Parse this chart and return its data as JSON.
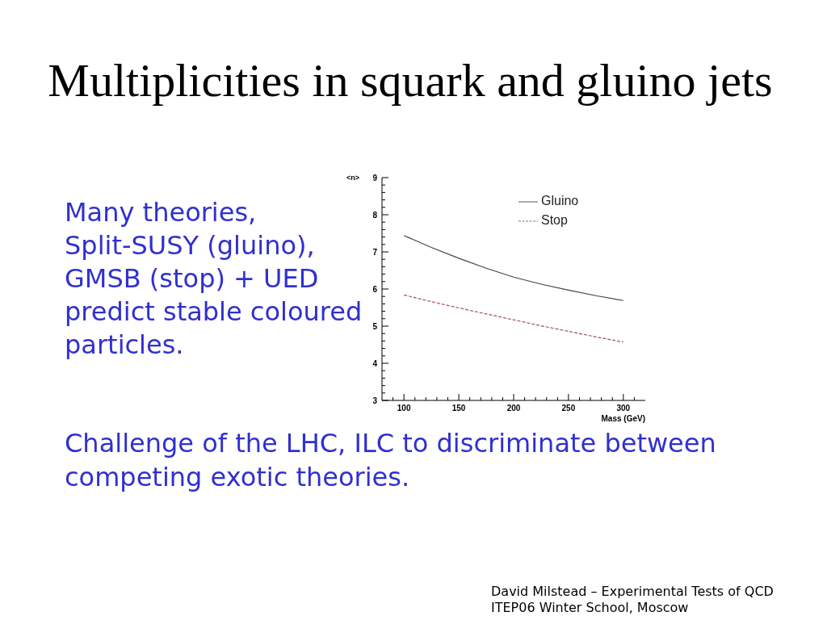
{
  "chart_data": {
    "type": "line",
    "title": "Multiplicities in squark and gluino jets",
    "xlabel": "Mass (GeV)",
    "ylabel": "<n>",
    "x": [
      100,
      125,
      150,
      175,
      200,
      225,
      250,
      275,
      300
    ],
    "series": [
      {
        "name": "Gluino",
        "color": "#444444",
        "line_style": "solid",
        "values": [
          7.44,
          7.12,
          6.83,
          6.56,
          6.32,
          6.13,
          5.97,
          5.82,
          5.69
        ]
      },
      {
        "name": "Stop",
        "color": "#a0525a",
        "line_style": "dashed",
        "values": [
          5.84,
          5.66,
          5.49,
          5.33,
          5.17,
          5.01,
          4.86,
          4.71,
          4.57
        ]
      }
    ],
    "xlim": [
      80,
      320
    ],
    "ylim": [
      3,
      9
    ],
    "xticks": [
      {
        "value": 90,
        "label": null
      },
      100,
      {
        "value": 110,
        "label": null
      },
      {
        "value": 120,
        "label": null
      },
      {
        "value": 130,
        "label": null
      },
      {
        "value": 140,
        "label": null
      },
      150,
      {
        "value": 160,
        "label": null
      },
      {
        "value": 170,
        "label": null
      },
      {
        "value": 180,
        "label": null
      },
      {
        "value": 190,
        "label": null
      },
      200,
      {
        "value": 210,
        "label": null
      },
      {
        "value": 220,
        "label": null
      },
      {
        "value": 230,
        "label": null
      },
      {
        "value": 240,
        "label": null
      },
      250,
      {
        "value": 260,
        "label": null
      },
      {
        "value": 270,
        "label": null
      },
      {
        "value": 280,
        "label": null
      },
      {
        "value": 290,
        "label": null
      },
      300,
      {
        "value": 310,
        "label": null
      }
    ],
    "yticks": [
      3,
      {
        "value": 3.2,
        "label": null
      },
      {
        "value": 3.4,
        "label": null
      },
      {
        "value": 3.6,
        "label": null
      },
      {
        "value": 3.8,
        "label": null
      },
      4,
      {
        "value": 4.2,
        "label": null
      },
      {
        "value": 4.4,
        "label": null
      },
      {
        "value": 4.6,
        "label": null
      },
      {
        "value": 4.8,
        "label": null
      },
      5,
      {
        "value": 5.2,
        "label": null
      },
      {
        "value": 5.4,
        "label": null
      },
      {
        "value": 5.6,
        "label": null
      },
      {
        "value": 5.8,
        "label": null
      },
      6,
      {
        "value": 6.2,
        "label": null
      },
      {
        "value": 6.4,
        "label": null
      },
      {
        "value": 6.6,
        "label": null
      },
      {
        "value": 6.8,
        "label": null
      },
      7,
      {
        "value": 7.2,
        "label": null
      },
      {
        "value": 7.4,
        "label": null
      },
      {
        "value": 7.6,
        "label": null
      },
      {
        "value": 7.8,
        "label": null
      },
      8,
      {
        "value": 8.2,
        "label": null
      },
      {
        "value": 8.4,
        "label": null
      },
      {
        "value": 8.6,
        "label": null
      },
      {
        "value": 8.8,
        "label": null
      },
      9
    ],
    "legend": "top right",
    "marker": "none",
    "annotations": [
      "Many theories,\nSplit-SUSY (gluino),\nGMSB (stop) + UED\npredict stable coloured\nparticles.",
      "Challenge of the LHC, ILC to discriminate between\ncompeting exotic theories.",
      "David Milstead – Experimental Tests of QCD\nITEP06 Winter School, Moscow"
    ]
  }
}
